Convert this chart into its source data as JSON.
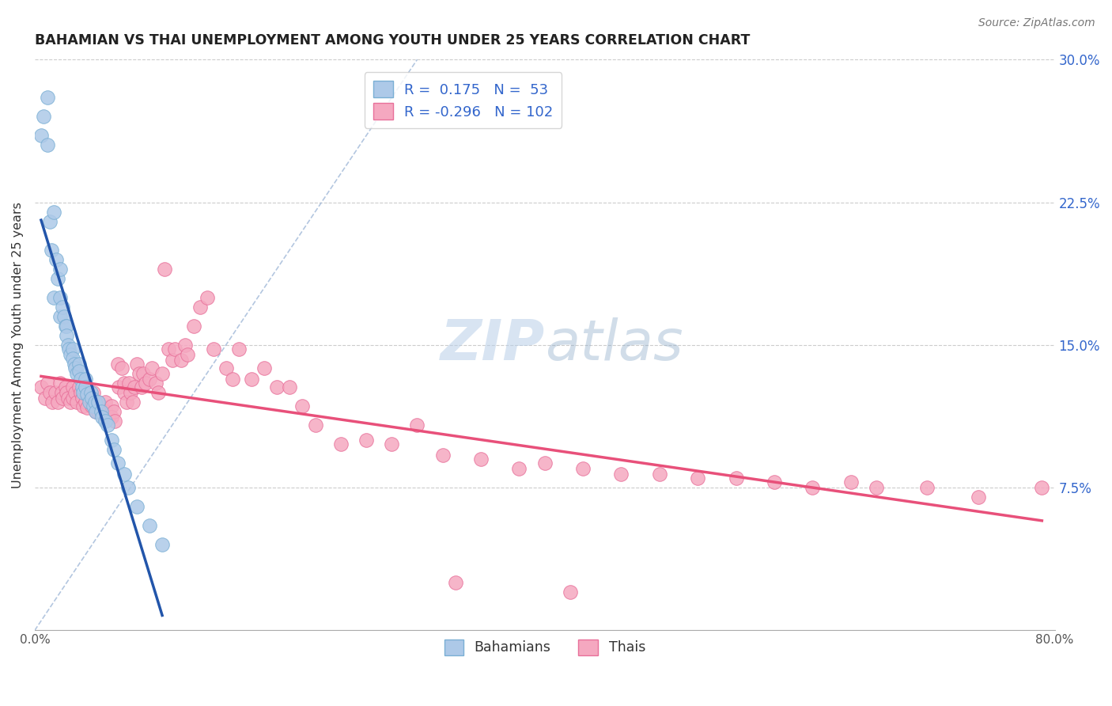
{
  "title": "BAHAMIAN VS THAI UNEMPLOYMENT AMONG YOUTH UNDER 25 YEARS CORRELATION CHART",
  "source": "Source: ZipAtlas.com",
  "ylabel": "Unemployment Among Youth under 25 years",
  "xlim": [
    0.0,
    0.8
  ],
  "ylim": [
    0.0,
    0.3
  ],
  "yticks_right": [
    0.075,
    0.15,
    0.225,
    0.3
  ],
  "yticklabels_right": [
    "7.5%",
    "15.0%",
    "22.5%",
    "30.0%"
  ],
  "bahamian_color": "#adc9e8",
  "thai_color": "#f5a8c0",
  "bahamian_edge": "#7aafd4",
  "thai_edge": "#e8709a",
  "trend_blue": "#2255aa",
  "trend_pink": "#e8507a",
  "grid_color": "#cccccc",
  "background": "#ffffff",
  "R_bahamian": 0.175,
  "N_bahamian": 53,
  "R_thai": -0.296,
  "N_thai": 102,
  "bahamian_x": [
    0.005,
    0.007,
    0.01,
    0.01,
    0.012,
    0.013,
    0.015,
    0.015,
    0.017,
    0.018,
    0.02,
    0.02,
    0.02,
    0.022,
    0.023,
    0.024,
    0.025,
    0.025,
    0.026,
    0.027,
    0.028,
    0.03,
    0.03,
    0.031,
    0.032,
    0.033,
    0.035,
    0.035,
    0.036,
    0.037,
    0.038,
    0.04,
    0.04,
    0.041,
    0.043,
    0.044,
    0.045,
    0.046,
    0.047,
    0.048,
    0.05,
    0.052,
    0.053,
    0.055,
    0.057,
    0.06,
    0.062,
    0.065,
    0.07,
    0.073,
    0.08,
    0.09,
    0.1
  ],
  "bahamian_y": [
    0.26,
    0.27,
    0.28,
    0.255,
    0.215,
    0.2,
    0.22,
    0.175,
    0.195,
    0.185,
    0.19,
    0.175,
    0.165,
    0.17,
    0.165,
    0.16,
    0.16,
    0.155,
    0.15,
    0.148,
    0.145,
    0.148,
    0.143,
    0.14,
    0.138,
    0.135,
    0.14,
    0.136,
    0.132,
    0.128,
    0.125,
    0.132,
    0.128,
    0.124,
    0.12,
    0.125,
    0.122,
    0.118,
    0.12,
    0.115,
    0.12,
    0.115,
    0.112,
    0.11,
    0.108,
    0.1,
    0.095,
    0.088,
    0.082,
    0.075,
    0.065,
    0.055,
    0.045
  ],
  "thai_x": [
    0.005,
    0.008,
    0.01,
    0.012,
    0.014,
    0.016,
    0.018,
    0.02,
    0.021,
    0.022,
    0.024,
    0.025,
    0.026,
    0.028,
    0.03,
    0.03,
    0.032,
    0.033,
    0.035,
    0.036,
    0.037,
    0.038,
    0.04,
    0.04,
    0.041,
    0.043,
    0.045,
    0.046,
    0.048,
    0.05,
    0.05,
    0.052,
    0.053,
    0.055,
    0.056,
    0.058,
    0.06,
    0.06,
    0.062,
    0.063,
    0.065,
    0.066,
    0.068,
    0.07,
    0.07,
    0.072,
    0.074,
    0.075,
    0.077,
    0.078,
    0.08,
    0.082,
    0.084,
    0.085,
    0.087,
    0.09,
    0.092,
    0.095,
    0.097,
    0.1,
    0.102,
    0.105,
    0.108,
    0.11,
    0.115,
    0.118,
    0.12,
    0.125,
    0.13,
    0.135,
    0.14,
    0.15,
    0.155,
    0.16,
    0.17,
    0.18,
    0.19,
    0.2,
    0.21,
    0.22,
    0.24,
    0.26,
    0.28,
    0.3,
    0.32,
    0.35,
    0.38,
    0.4,
    0.43,
    0.46,
    0.49,
    0.52,
    0.55,
    0.58,
    0.61,
    0.64,
    0.66,
    0.7,
    0.74,
    0.79,
    0.33,
    0.42
  ],
  "thai_y": [
    0.128,
    0.122,
    0.13,
    0.125,
    0.12,
    0.125,
    0.12,
    0.13,
    0.125,
    0.122,
    0.128,
    0.125,
    0.122,
    0.12,
    0.128,
    0.122,
    0.125,
    0.12,
    0.128,
    0.125,
    0.122,
    0.118,
    0.125,
    0.12,
    0.117,
    0.122,
    0.118,
    0.125,
    0.115,
    0.12,
    0.115,
    0.118,
    0.115,
    0.12,
    0.115,
    0.112,
    0.118,
    0.112,
    0.115,
    0.11,
    0.14,
    0.128,
    0.138,
    0.13,
    0.125,
    0.12,
    0.13,
    0.125,
    0.12,
    0.128,
    0.14,
    0.135,
    0.128,
    0.135,
    0.13,
    0.132,
    0.138,
    0.13,
    0.125,
    0.135,
    0.19,
    0.148,
    0.142,
    0.148,
    0.142,
    0.15,
    0.145,
    0.16,
    0.17,
    0.175,
    0.148,
    0.138,
    0.132,
    0.148,
    0.132,
    0.138,
    0.128,
    0.128,
    0.118,
    0.108,
    0.098,
    0.1,
    0.098,
    0.108,
    0.092,
    0.09,
    0.085,
    0.088,
    0.085,
    0.082,
    0.082,
    0.08,
    0.08,
    0.078,
    0.075,
    0.078,
    0.075,
    0.075,
    0.07,
    0.075,
    0.025,
    0.02
  ]
}
